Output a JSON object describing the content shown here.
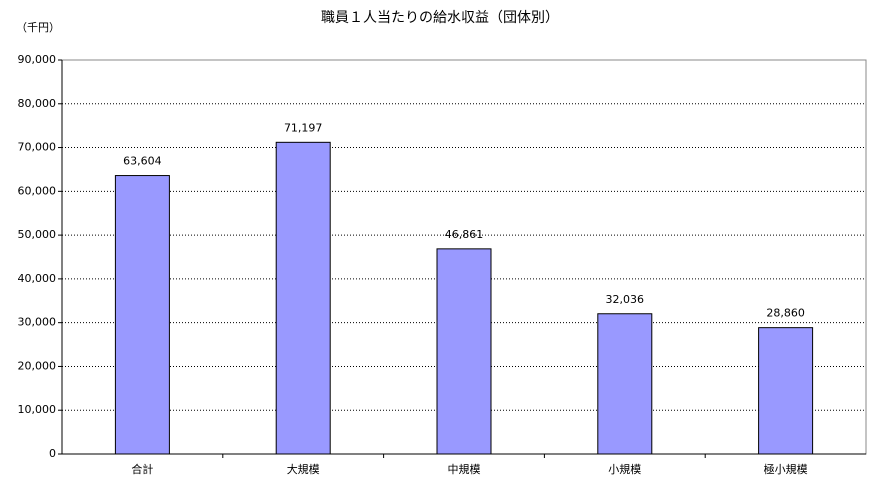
{
  "chart_data": {
    "type": "bar",
    "title": "職員１人当たりの給水収益（団体別）",
    "ylabel": "（千円）",
    "categories": [
      "合計",
      "大規模",
      "中規模",
      "小規模",
      "極小規模"
    ],
    "values": [
      63604,
      71197,
      46861,
      32036,
      28860
    ],
    "value_labels": [
      "63,604",
      "71,197",
      "46,861",
      "32,036",
      "28,860"
    ],
    "color": "#9999ff",
    "ylim": [
      0,
      90000
    ],
    "yticks": [
      0,
      {
        "value": 10000,
        "label": "10,000"
      },
      {
        "value": 20000,
        "label": "20,000"
      },
      {
        "value": 30000,
        "label": "30,000"
      },
      {
        "value": 40000,
        "label": "40,000"
      },
      {
        "value": 50000,
        "label": "50,000"
      },
      {
        "value": 60000,
        "label": "60,000"
      },
      {
        "value": 70000,
        "label": "70,000"
      },
      {
        "value": 80000,
        "label": "80,000"
      },
      {
        "value": 90000,
        "label": "90,000"
      }
    ],
    "grid": true
  }
}
